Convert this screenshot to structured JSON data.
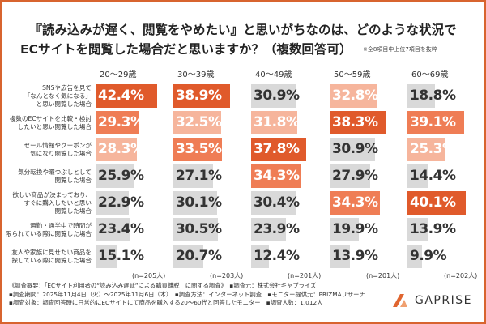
{
  "chart_data": {
    "type": "bar",
    "title": "『読み込みが遅く、閲覧をやめたい』と思いがちなのは、どのような状況で",
    "title_line2": "ECサイトを閲覧した場合だと思いますか？（複数回答可）",
    "note": "※全8項目中上位7項目を抜粋",
    "orientation": "horizontal",
    "categories": [
      "SNSや広告を見て\n「なんとなく気になる」\nと思い閲覧した場合",
      "複数のECサイトを比較・検討\nしたいと思い閲覧した場合",
      "セール情報やクーポンが\n気になり閲覧した場合",
      "気分転換や暇つぶしとして\n閲覧した場合",
      "欲しい商品が決まっており、\nすぐに購入したいと思い\n閲覧した場合",
      "通勤・通学中で時間が\n限られている際に閲覧した場合",
      "友人や家族に見せたい商品を\n探している際に閲覧した場合"
    ],
    "series": [
      {
        "name": "20〜29歳",
        "n": "(n=205人)",
        "values": [
          42.4,
          29.3,
          28.3,
          25.9,
          22.9,
          23.4,
          15.1
        ]
      },
      {
        "name": "30〜39歳",
        "n": "(n=203人)",
        "values": [
          38.9,
          32.5,
          33.5,
          27.1,
          30.1,
          30.5,
          20.7
        ]
      },
      {
        "name": "40〜49歳",
        "n": "(n=201人)",
        "values": [
          30.9,
          31.8,
          37.8,
          34.3,
          30.4,
          23.9,
          12.4
        ]
      },
      {
        "name": "50〜59歳",
        "n": "(n=201人)",
        "values": [
          32.8,
          38.3,
          30.9,
          27.9,
          34.3,
          19.9,
          13.9
        ]
      },
      {
        "name": "60〜69歳",
        "n": "(n=202人)",
        "values": [
          18.8,
          39.1,
          25.3,
          14.4,
          40.1,
          13.9,
          9.9
        ]
      }
    ],
    "unit": "%",
    "rank_colors": [
      "#e05a2b",
      "#ef7d55",
      "#f6b59c"
    ],
    "other_color": "#d9d9d9",
    "rank_text_colors": [
      "#ffffff",
      "#ffffff",
      "#ffffff"
    ],
    "other_text_color": "#333333"
  },
  "footer": [
    "《調査概要：「ECサイト利用者の“読み込み遅延”による購買離脱」に関する調査》　▪調査元：株式会社ギャプライズ",
    "▪調査期間：2025年11月4日（火）〜2025年11月6日（木）　▪調査方法：インターネット調査　▪モニター提供元：PRIZMAリサーチ",
    "▪調査対象：調査回答時に日常的にECサイトにて商品を購入する20〜60代と回答したモニター　▪調査人数：1,012人"
  ],
  "logo": {
    "text": "GAPRISE",
    "color": "#e0652f"
  },
  "frame_color": "#d8642f"
}
